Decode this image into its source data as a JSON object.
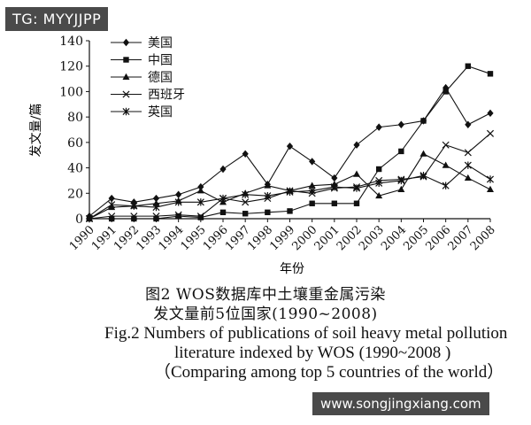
{
  "watermark_top": "TG: MYYJJPP",
  "watermark_bottom": "www.songjingxiang.com",
  "chart_data": {
    "type": "line",
    "title": "",
    "xlabel": "年份",
    "ylabel": "发文量/篇",
    "ylim": [
      0,
      140
    ],
    "yticks": [
      0,
      20,
      40,
      60,
      80,
      100,
      120,
      140
    ],
    "categories": [
      "1990",
      "1991",
      "1992",
      "1993",
      "1994",
      "1995",
      "1996",
      "1997",
      "1998",
      "1999",
      "2000",
      "2001",
      "2002",
      "2003",
      "2004",
      "2005",
      "2006",
      "2007",
      "2008"
    ],
    "legend_position": "top-left",
    "series": [
      {
        "name": "美国",
        "marker": "diamond",
        "values": [
          2,
          16,
          13,
          16,
          19,
          25,
          39,
          51,
          27,
          57,
          45,
          32,
          58,
          72,
          74,
          77,
          103,
          74,
          83
        ]
      },
      {
        "name": "中国",
        "marker": "square",
        "values": [
          0,
          0,
          0,
          0,
          2,
          1,
          5,
          4,
          5,
          6,
          12,
          12,
          12,
          39,
          53,
          77,
          100,
          120,
          114
        ]
      },
      {
        "name": "德国",
        "marker": "triangle",
        "values": [
          0,
          9,
          10,
          12,
          14,
          22,
          13,
          20,
          26,
          22,
          26,
          27,
          35,
          18,
          23,
          51,
          42,
          32,
          23
        ]
      },
      {
        "name": "西班牙",
        "marker": "x",
        "values": [
          0,
          2,
          2,
          2,
          3,
          2,
          16,
          13,
          16,
          22,
          20,
          24,
          25,
          30,
          31,
          33,
          58,
          52,
          67
        ]
      },
      {
        "name": "英国",
        "marker": "star",
        "values": [
          0,
          11,
          10,
          9,
          13,
          13,
          16,
          19,
          18,
          21,
          22,
          25,
          24,
          28,
          30,
          34,
          26,
          42,
          31
        ]
      }
    ]
  },
  "caption": {
    "zh_line1": "图2 WOS数据库中土壤重金属污染",
    "zh_line2": "发文量前5位国家(1990~2008)",
    "en_line1": "Fig.2  Numbers of publications of soil heavy metal pollution",
    "en_line2": "literature indexed by WOS (1990~2008 )",
    "en_line3": "（Comparing among top 5 countries of the world）"
  }
}
